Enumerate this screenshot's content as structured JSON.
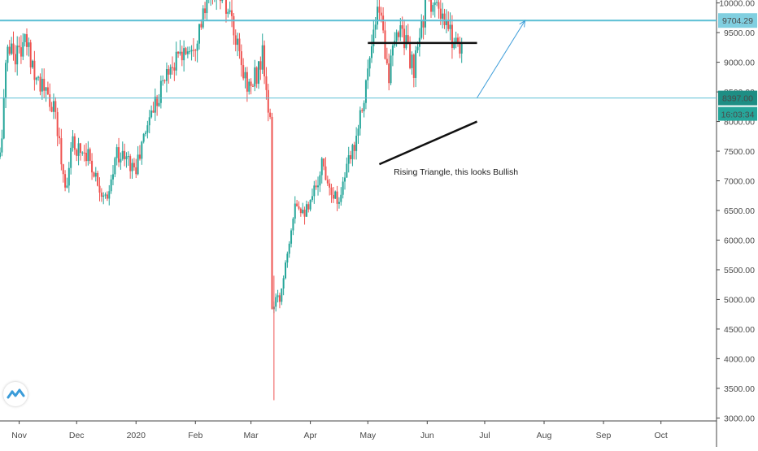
{
  "chart_data": {
    "type": "candlestick",
    "instrument_hint": "price chart",
    "y_ticks": [
      "3000.00",
      "3500.00",
      "4000.00",
      "4500.00",
      "5000.00",
      "5500.00",
      "6000.00",
      "6500.00",
      "7000.00",
      "7500.00",
      "8000.00",
      "8500.00",
      "9000.00",
      "9500.00",
      "10000.00"
    ],
    "y_tick_values": [
      3000,
      3500,
      4000,
      4500,
      5000,
      5500,
      6000,
      6500,
      7000,
      7500,
      8000,
      8500,
      9000,
      9500,
      10000
    ],
    "ylim": [
      2950,
      10050
    ],
    "x_ticks": [
      "Nov",
      "Dec",
      "2020",
      "Feb",
      "Mar",
      "Apr",
      "May",
      "Jun",
      "Jul",
      "Aug",
      "Sep",
      "Oct"
    ],
    "x_tick_dates": [
      "2019-11-01",
      "2019-12-01",
      "2020-01-01",
      "2020-02-01",
      "2020-03-01",
      "2020-04-01",
      "2020-05-01",
      "2020-06-01",
      "2020-07-01",
      "2020-08-01",
      "2020-09-01",
      "2020-10-01"
    ],
    "xlim": [
      "2019-10-22",
      "2020-10-30"
    ],
    "anchors": [
      {
        "date": "2019-10-22",
        "close": 7400
      },
      {
        "date": "2019-10-26",
        "close": 9300
      },
      {
        "date": "2019-10-30",
        "close": 9150
      },
      {
        "date": "2019-11-05",
        "close": 9300
      },
      {
        "date": "2019-11-10",
        "close": 8800
      },
      {
        "date": "2019-11-20",
        "close": 8100
      },
      {
        "date": "2019-11-25",
        "close": 6900
      },
      {
        "date": "2019-11-29",
        "close": 7600
      },
      {
        "date": "2019-12-06",
        "close": 7500
      },
      {
        "date": "2019-12-17",
        "close": 6600
      },
      {
        "date": "2019-12-22",
        "close": 7500
      },
      {
        "date": "2020-01-01",
        "close": 7200
      },
      {
        "date": "2020-01-08",
        "close": 8100
      },
      {
        "date": "2020-01-18",
        "close": 8900
      },
      {
        "date": "2020-02-01",
        "close": 9400
      },
      {
        "date": "2020-02-09",
        "close": 10100
      },
      {
        "date": "2020-02-13",
        "close": 10300
      },
      {
        "date": "2020-02-20",
        "close": 9600
      },
      {
        "date": "2020-02-26",
        "close": 8800
      },
      {
        "date": "2020-03-01",
        "close": 8550
      },
      {
        "date": "2020-03-07",
        "close": 9100
      },
      {
        "date": "2020-03-11",
        "close": 7900
      },
      {
        "date": "2020-03-12",
        "close": 4900
      },
      {
        "date": "2020-03-16",
        "close": 5000
      },
      {
        "date": "2020-03-24",
        "close": 6700
      },
      {
        "date": "2020-03-31",
        "close": 6450
      },
      {
        "date": "2020-04-07",
        "close": 7300
      },
      {
        "date": "2020-04-15",
        "close": 6650
      },
      {
        "date": "2020-04-23",
        "close": 7500
      },
      {
        "date": "2020-04-30",
        "close": 8650
      },
      {
        "date": "2020-05-07",
        "close": 9950
      },
      {
        "date": "2020-05-12",
        "close": 8800
      },
      {
        "date": "2020-05-18",
        "close": 9700
      },
      {
        "date": "2020-05-25",
        "close": 8800
      },
      {
        "date": "2020-06-01",
        "close": 10200
      },
      {
        "date": "2020-06-08",
        "close": 9700
      },
      {
        "date": "2020-06-15",
        "close": 9400
      },
      {
        "date": "2020-06-19",
        "close": 9300
      }
    ],
    "current_price": {
      "label": "8397.00",
      "value": 8397
    },
    "countdown": "16:03:34",
    "resistance_level": {
      "label": "9704.29",
      "value": 9704.29
    },
    "drawings": [
      {
        "kind": "triangle-top-line",
        "from": {
          "date": "2020-05-01",
          "price": 9325
        },
        "to": {
          "date": "2020-06-27",
          "price": 9325
        }
      },
      {
        "kind": "triangle-rising-support",
        "from": {
          "date": "2020-05-07",
          "price": 7280
        },
        "to": {
          "date": "2020-06-27",
          "price": 8000
        }
      },
      {
        "kind": "projection-arrow",
        "from": {
          "date": "2020-06-27",
          "price": 8400
        },
        "to": {
          "date": "2020-07-22",
          "price": 9700
        }
      }
    ],
    "annotations": [
      {
        "text": "Rising Triangle, this looks Bullish",
        "date": "2020-06-16",
        "price": 7100
      }
    ],
    "colors": {
      "bull": "#26a69a",
      "bear": "#ef5350",
      "level_line": "#5bbfd4",
      "price_label_bg": "#1e8e84",
      "countdown_bg": "#26a69a",
      "resistance_label_bg": "#80cfe0",
      "arrow": "#3b9cd9",
      "drawing": "#111111",
      "grid": "#ffffff",
      "text": "#4a4a4a"
    }
  },
  "logo": {
    "icon": "tradingview-logo-icon"
  }
}
